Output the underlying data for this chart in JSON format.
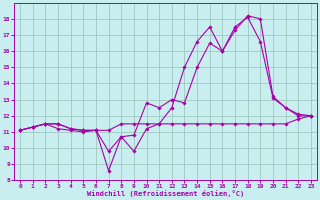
{
  "xlabel": "Windchill (Refroidissement éolien,°C)",
  "background_color": "#c8eef0",
  "grid_color": "#a0c8c0",
  "line_color": "#aa00aa",
  "xlim": [
    -0.5,
    23.5
  ],
  "ylim": [
    8,
    19
  ],
  "xticks": [
    0,
    1,
    2,
    3,
    4,
    5,
    6,
    7,
    8,
    9,
    10,
    11,
    12,
    13,
    14,
    15,
    16,
    17,
    18,
    19,
    20,
    21,
    22,
    23
  ],
  "yticks": [
    8,
    9,
    10,
    11,
    12,
    13,
    14,
    15,
    16,
    17,
    18
  ],
  "line1_x": [
    0,
    1,
    2,
    3,
    4,
    5,
    6,
    7,
    8,
    9,
    10,
    11,
    12,
    13,
    14,
    15,
    16,
    17,
    18,
    19,
    20,
    21,
    22,
    23
  ],
  "line1_y": [
    11.1,
    11.3,
    11.5,
    11.2,
    11.1,
    11.0,
    11.1,
    8.6,
    10.7,
    10.8,
    12.8,
    12.5,
    13.0,
    12.8,
    15.0,
    16.5,
    16.0,
    17.5,
    18.1,
    16.6,
    13.1,
    12.5,
    12.0,
    12.0
  ],
  "line2_x": [
    0,
    1,
    2,
    3,
    4,
    5,
    6,
    7,
    8,
    9,
    10,
    11,
    12,
    13,
    14,
    15,
    16,
    17,
    18,
    19,
    20,
    21,
    22,
    23
  ],
  "line2_y": [
    11.1,
    11.3,
    11.5,
    11.5,
    11.2,
    11.1,
    11.1,
    9.8,
    10.7,
    9.8,
    11.2,
    11.5,
    12.5,
    15.0,
    16.6,
    17.5,
    16.0,
    17.3,
    18.2,
    18.0,
    13.2,
    12.5,
    12.1,
    12.0
  ],
  "line3_x": [
    0,
    1,
    2,
    3,
    4,
    5,
    6,
    7,
    8,
    9,
    10,
    11,
    12,
    13,
    14,
    15,
    16,
    17,
    18,
    19,
    20,
    21,
    22,
    23
  ],
  "line3_y": [
    11.1,
    11.3,
    11.5,
    11.5,
    11.2,
    11.1,
    11.1,
    11.1,
    11.5,
    11.5,
    11.5,
    11.5,
    11.5,
    11.5,
    11.5,
    11.5,
    11.5,
    11.5,
    11.5,
    11.5,
    11.5,
    11.5,
    11.8,
    12.0
  ]
}
